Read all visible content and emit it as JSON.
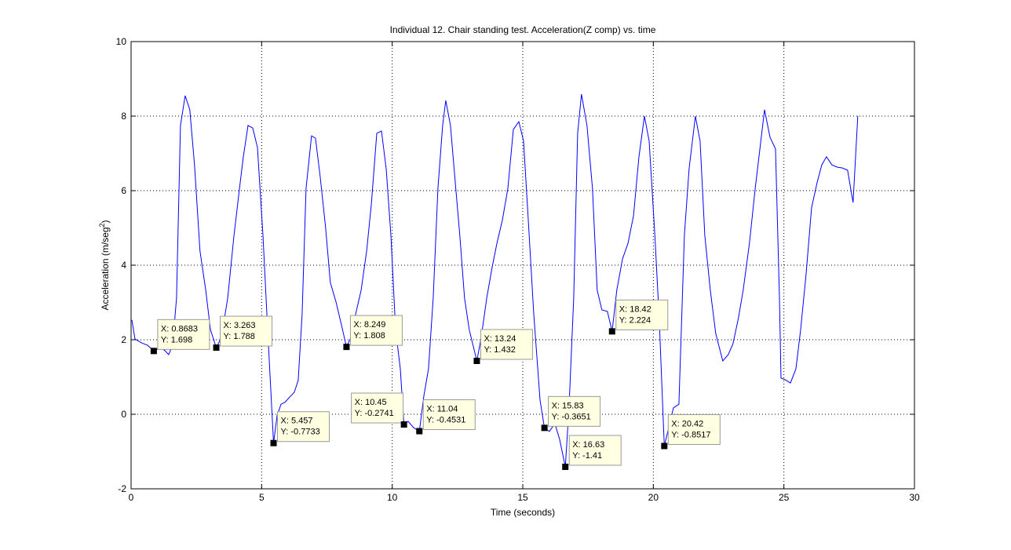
{
  "chart_data": {
    "type": "line",
    "title": "Individual 12. Chair standing test. Acceleration(Z comp) vs. time",
    "xlabel": "Time (seconds)",
    "ylabel": "Acceleration (m/seg",
    "ylabel_sup": "2",
    "ylabel_end": ")",
    "color": "#0000ff",
    "grid": true,
    "xlim": [
      0,
      30
    ],
    "xticks": [
      0,
      5,
      10,
      15,
      20,
      25,
      30
    ],
    "ylim": [
      -2,
      10
    ],
    "yticks": [
      -2,
      0,
      2,
      4,
      6,
      8,
      10
    ],
    "x": [
      0.03,
      0.15,
      0.39,
      0.63,
      0.8683,
      1.14,
      1.29,
      1.44,
      1.59,
      1.74,
      1.89,
      2.07,
      2.25,
      2.43,
      2.64,
      2.86,
      3.04,
      3.263,
      3.46,
      3.7,
      3.94,
      4.15,
      4.3,
      4.48,
      4.66,
      4.84,
      5.05,
      5.23,
      5.457,
      5.59,
      5.74,
      5.89,
      6.1,
      6.25,
      6.4,
      6.55,
      6.7,
      6.91,
      7.06,
      7.24,
      7.45,
      7.63,
      7.85,
      8.03,
      8.249,
      8.42,
      8.6,
      8.81,
      9.02,
      9.2,
      9.41,
      9.59,
      9.77,
      9.95,
      10.13,
      10.31,
      10.45,
      10.61,
      10.82,
      11.04,
      11.21,
      11.39,
      11.57,
      11.75,
      11.93,
      12.05,
      12.23,
      12.41,
      12.59,
      12.77,
      12.95,
      13.24,
      13.41,
      13.62,
      13.83,
      14.01,
      14.22,
      14.43,
      14.64,
      14.85,
      15.03,
      15.21,
      15.42,
      15.66,
      15.83,
      16.02,
      16.23,
      16.41,
      16.63,
      16.77,
      16.95,
      17.1,
      17.25,
      17.46,
      17.67,
      17.85,
      18.03,
      18.24,
      18.42,
      18.6,
      18.82,
      19.03,
      19.24,
      19.45,
      19.66,
      19.84,
      20.06,
      20.23,
      20.42,
      20.59,
      20.77,
      20.98,
      21.19,
      21.37,
      21.61,
      21.79,
      21.97,
      22.18,
      22.39,
      22.66,
      22.87,
      23.05,
      23.26,
      23.44,
      23.68,
      23.9,
      24.08,
      24.26,
      24.47,
      24.68,
      24.83,
      24.89,
      25.04,
      25.25,
      25.46,
      25.64,
      25.85,
      26.06,
      26.27,
      26.45,
      26.63,
      26.84,
      27.05,
      27.23,
      27.44,
      27.65,
      27.83
    ],
    "y": [
      2.53,
      2.02,
      1.92,
      1.85,
      1.698,
      1.79,
      1.71,
      1.6,
      1.85,
      3.12,
      7.75,
      8.55,
      8.17,
      6.69,
      4.38,
      3.33,
      2.27,
      1.788,
      2.06,
      3.12,
      4.8,
      6.06,
      6.91,
      7.75,
      7.68,
      7.16,
      4.8,
      2.27,
      -0.7733,
      -0.04,
      0.27,
      0.32,
      0.48,
      0.59,
      0.91,
      2.69,
      6.06,
      7.47,
      7.41,
      6.38,
      5.01,
      3.54,
      3.01,
      2.48,
      1.808,
      2.06,
      2.69,
      3.33,
      4.38,
      5.64,
      7.54,
      7.6,
      6.59,
      4.8,
      2.27,
      1.22,
      -0.2741,
      -0.19,
      -0.36,
      -0.4531,
      0.48,
      1.22,
      3.12,
      6.06,
      7.75,
      8.42,
      7.75,
      6.27,
      4.8,
      3.12,
      2.27,
      1.432,
      2.06,
      3.12,
      3.96,
      4.59,
      5.22,
      6.06,
      7.64,
      7.85,
      7.33,
      5.22,
      2.69,
      0.38,
      -0.3651,
      -0.46,
      -0.25,
      -0.67,
      -1.41,
      0.17,
      3.12,
      7.54,
      8.59,
      7.75,
      6.06,
      3.33,
      2.8,
      2.76,
      2.224,
      3.33,
      4.17,
      4.59,
      5.33,
      6.91,
      8.0,
      7.33,
      4.8,
      2.48,
      -0.8517,
      -0.36,
      0.17,
      0.27,
      4.8,
      6.59,
      8.0,
      7.33,
      4.8,
      3.33,
      2.17,
      1.43,
      1.6,
      1.89,
      2.59,
      3.33,
      4.59,
      6.06,
      7.12,
      8.17,
      7.43,
      7.12,
      3.12,
      0.97,
      0.93,
      0.84,
      1.22,
      2.27,
      3.75,
      5.54,
      6.21,
      6.69,
      6.91,
      6.69,
      6.63,
      6.61,
      6.55,
      5.68,
      8.0
    ],
    "datatips": [
      {
        "x": 0.8683,
        "y": 1.698,
        "labels": [
          "X: 0.8683",
          "Y: 1.698"
        ]
      },
      {
        "x": 3.263,
        "y": 1.788,
        "labels": [
          "X: 3.263",
          "Y: 1.788"
        ]
      },
      {
        "x": 5.457,
        "y": -0.7733,
        "labels": [
          "X: 5.457",
          "Y: -0.7733"
        ]
      },
      {
        "x": 8.249,
        "y": 1.808,
        "labels": [
          "X: 8.249",
          "Y: 1.808"
        ]
      },
      {
        "x": 10.45,
        "y": -0.2741,
        "labels": [
          "X: 10.45",
          "Y: -0.2741"
        ]
      },
      {
        "x": 11.04,
        "y": -0.4531,
        "labels": [
          "X: 11.04",
          "Y: -0.4531"
        ]
      },
      {
        "x": 13.24,
        "y": 1.432,
        "labels": [
          "X: 13.24",
          "Y: 1.432"
        ]
      },
      {
        "x": 15.83,
        "y": -0.3651,
        "labels": [
          "X: 15.83",
          "Y: -0.3651"
        ]
      },
      {
        "x": 16.63,
        "y": -1.41,
        "labels": [
          "X: 16.63",
          "Y: -1.41"
        ]
      },
      {
        "x": 18.42,
        "y": 2.224,
        "labels": [
          "X: 18.42",
          "Y: 2.224"
        ]
      },
      {
        "x": 20.42,
        "y": -0.8517,
        "labels": [
          "X: 20.42",
          "Y: -0.8517"
        ]
      }
    ]
  }
}
